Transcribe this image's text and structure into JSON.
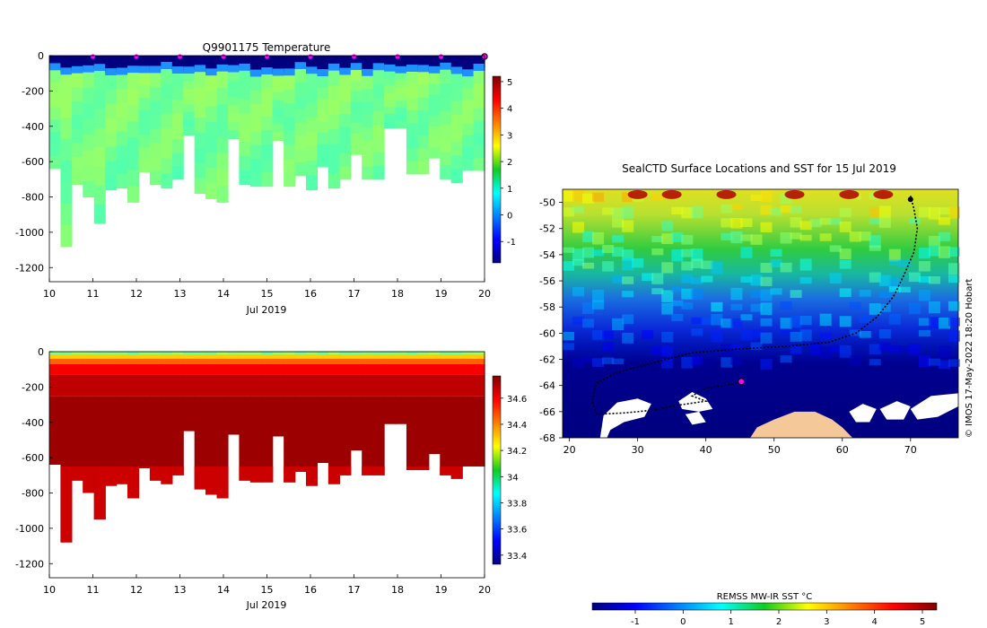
{
  "chart_data": [
    {
      "type": "heatmap",
      "title": "Q9901175  Temperature",
      "xlabel": "Jul 2019",
      "ylabel": "",
      "x_ticks": [
        "10",
        "11",
        "12",
        "13",
        "14",
        "15",
        "16",
        "17",
        "18",
        "19",
        "20"
      ],
      "xlim": [
        10,
        20
      ],
      "y_ticks": [
        "0",
        "-200",
        "-400",
        "-600",
        "-800",
        "-1000",
        "-1200"
      ],
      "ylim": [
        -1280,
        0
      ],
      "colorbar_ticks": [
        "5",
        "4",
        "3",
        "2",
        "1",
        "0",
        "-1"
      ],
      "colorbar_range": [
        -1.8,
        5.2
      ],
      "profile_markers_x": [
        11,
        12,
        13,
        14,
        15,
        16,
        17,
        18,
        19
      ],
      "max_depth_m": [
        -640,
        -1080,
        -730,
        -800,
        -950,
        -760,
        -750,
        -830,
        -660,
        -730,
        -750,
        -700,
        -450,
        -780,
        -810,
        -830,
        -470,
        -730,
        -740,
        -740,
        -480,
        -740,
        -680,
        -760,
        -630,
        -750,
        -700,
        -560,
        -700,
        -700,
        -410,
        -410,
        -670,
        -670,
        -580,
        -700,
        -720,
        -650,
        -650
      ],
      "surface_temp_c": -1.5,
      "deep_temp_c": 1.4
    },
    {
      "type": "heatmap",
      "title": "",
      "xlabel": "Jul 2019",
      "ylabel": "",
      "x_ticks": [
        "10",
        "11",
        "12",
        "13",
        "14",
        "15",
        "16",
        "17",
        "18",
        "19",
        "20"
      ],
      "xlim": [
        10,
        20
      ],
      "y_ticks": [
        "0",
        "-200",
        "-400",
        "-600",
        "-800",
        "-1000",
        "-1200"
      ],
      "ylim": [
        -1280,
        0
      ],
      "colorbar_ticks": [
        "34.6",
        "34.4",
        "34.2",
        "34",
        "33.8",
        "33.6",
        "33.4"
      ],
      "colorbar_range": [
        33.33,
        34.77
      ],
      "surface_salinity_psu": 34.0,
      "deep_salinity_psu": 34.72
    },
    {
      "type": "heatmap",
      "title": "SealCTD Surface Locations and SST for 15 Jul 2019",
      "x_ticks": [
        "20",
        "30",
        "40",
        "50",
        "60",
        "70"
      ],
      "xlim": [
        19,
        77
      ],
      "y_ticks": [
        "-50",
        "-52",
        "-54",
        "-56",
        "-58",
        "-60",
        "-62",
        "-64",
        "-66",
        "-68"
      ],
      "ylim": [
        -68,
        -49
      ],
      "track_lonlat": [
        [
          70,
          -49.5
        ],
        [
          70.5,
          -50.5
        ],
        [
          71,
          -52
        ],
        [
          70.5,
          -53.8
        ],
        [
          69,
          -55.6
        ],
        [
          67.5,
          -57.2
        ],
        [
          65,
          -58.8
        ],
        [
          62,
          -60
        ],
        [
          58,
          -60.7
        ],
        [
          52,
          -61
        ],
        [
          45,
          -61.2
        ],
        [
          38,
          -61.5
        ],
        [
          32,
          -62.3
        ],
        [
          27,
          -63
        ],
        [
          24,
          -63.8
        ],
        [
          23.3,
          -65.2
        ],
        [
          24,
          -66.2
        ],
        [
          28,
          -66.1
        ],
        [
          32,
          -65.9
        ],
        [
          36,
          -65.5
        ],
        [
          40,
          -65.2
        ],
        [
          38,
          -64.8
        ],
        [
          40,
          -64.2
        ],
        [
          45,
          -63.8
        ]
      ],
      "current_position": [
        45.2,
        -63.7
      ],
      "colorbar_label": "REMSS MW-IR SST °C",
      "colorbar_ticks": [
        "-1",
        "0",
        "1",
        "2",
        "3",
        "4",
        "5"
      ],
      "colorbar_range": [
        -1.9,
        5.3
      ],
      "credit": "© IMOS 17-May-2022 18:20 Hobart"
    }
  ],
  "colors": {
    "jet_scale": [
      "#00007f",
      "#0000ff",
      "#007fff",
      "#00e5ff",
      "#00cc66",
      "#10cc10",
      "#7fe000",
      "#e5e500",
      "#ffa000",
      "#ff4000",
      "#d00000",
      "#7f0000"
    ],
    "land": "#f5c89a",
    "marker": "#ff00ff"
  }
}
